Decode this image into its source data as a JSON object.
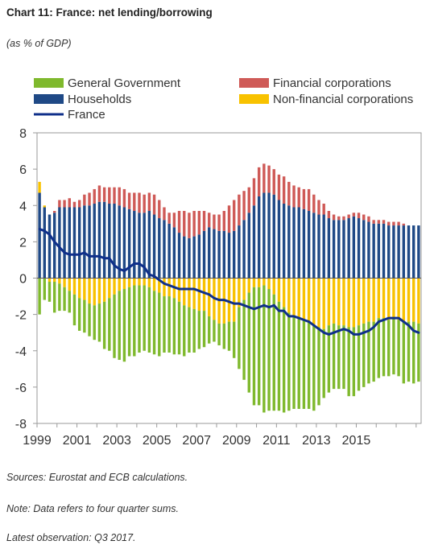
{
  "header": {
    "title": "Chart 11: France: net lending/borrowing",
    "subtitle": "(as % of GDP)"
  },
  "footer": {
    "sources": "Sources: Eurostat and ECB calculations.",
    "note": "Note: Data refers to four quarter sums.",
    "latest": "Latest observation: Q3 2017."
  },
  "colors": {
    "general_government": "#7fb92d",
    "financial_corporations": "#cf5a57",
    "households": "#1f4986",
    "non_financial_corporations": "#f8c200",
    "france": "#0f2f8a"
  },
  "chart_data": {
    "type": "bar",
    "stacked": true,
    "x_start": "1999Q1",
    "x_tick_labels": [
      "1999",
      "2001",
      "2003",
      "2005",
      "2007",
      "2009",
      "2011",
      "2013",
      "2015"
    ],
    "ylim": [
      -8,
      8
    ],
    "yticks": [
      8,
      6,
      4,
      2,
      0,
      -2,
      -4,
      -6,
      -8
    ],
    "grid": false,
    "legend_position": "top",
    "legend": [
      "General Government",
      "Financial corporations",
      "Households",
      "Non-financial corporations",
      "France"
    ],
    "series": [
      {
        "name": "Households",
        "type": "bar",
        "values": [
          4.7,
          3.9,
          3.5,
          3.6,
          3.9,
          3.9,
          3.9,
          3.9,
          3.9,
          4.0,
          4.0,
          4.1,
          4.2,
          4.2,
          4.1,
          4.1,
          4.0,
          3.9,
          3.8,
          3.7,
          3.6,
          3.6,
          3.7,
          3.5,
          3.3,
          3.2,
          3.0,
          2.8,
          2.5,
          2.3,
          2.2,
          2.3,
          2.4,
          2.6,
          2.8,
          2.7,
          2.6,
          2.6,
          2.5,
          2.6,
          2.9,
          3.2,
          3.6,
          4.0,
          4.5,
          4.7,
          4.7,
          4.6,
          4.3,
          4.1,
          4.0,
          3.9,
          3.9,
          3.8,
          3.7,
          3.6,
          3.5,
          3.5,
          3.3,
          3.2,
          3.2,
          3.2,
          3.3,
          3.4,
          3.3,
          3.2,
          3.1,
          3.0,
          3.0,
          3.0,
          2.9,
          2.9,
          2.9,
          2.9,
          2.9,
          2.9,
          2.9
        ]
      },
      {
        "name": "Financial corporations",
        "type": "bar",
        "values": [
          0.0,
          0.0,
          0.0,
          0.1,
          0.4,
          0.4,
          0.5,
          0.3,
          0.4,
          0.6,
          0.7,
          0.8,
          0.9,
          0.8,
          0.9,
          0.9,
          1.0,
          1.0,
          0.9,
          1.0,
          1.1,
          1.0,
          1.0,
          1.1,
          1.0,
          0.7,
          0.6,
          0.8,
          1.2,
          1.4,
          1.4,
          1.4,
          1.3,
          1.1,
          0.8,
          0.8,
          0.9,
          1.1,
          1.5,
          1.7,
          1.7,
          1.6,
          1.4,
          1.5,
          1.6,
          1.6,
          1.5,
          1.4,
          1.4,
          1.5,
          1.3,
          1.2,
          1.1,
          1.1,
          1.2,
          1.0,
          0.8,
          0.6,
          0.4,
          0.3,
          0.2,
          0.2,
          0.2,
          0.2,
          0.3,
          0.3,
          0.3,
          0.2,
          0.2,
          0.2,
          0.2,
          0.2,
          0.2,
          0.1,
          0.0,
          0.0,
          0.0
        ]
      },
      {
        "name": "Non-financial corporations",
        "type": "bar",
        "values": [
          0.6,
          0.1,
          -0.2,
          -0.2,
          -0.3,
          -0.5,
          -0.7,
          -0.9,
          -1.1,
          -1.2,
          -1.4,
          -1.5,
          -1.4,
          -1.3,
          -1.1,
          -0.9,
          -0.7,
          -0.6,
          -0.5,
          -0.4,
          -0.4,
          -0.4,
          -0.5,
          -0.7,
          -0.8,
          -1.0,
          -1.0,
          -1.1,
          -1.3,
          -1.5,
          -1.6,
          -1.7,
          -1.8,
          -1.8,
          -2.1,
          -2.3,
          -2.5,
          -2.5,
          -2.4,
          -2.4,
          -1.6,
          -1.2,
          -0.8,
          -0.5,
          -0.5,
          -0.4,
          -0.6,
          -0.9,
          -1.3,
          -1.6,
          -1.9,
          -2.1,
          -2.2,
          -2.3,
          -2.4,
          -2.6,
          -2.7,
          -2.8,
          -2.6,
          -2.5,
          -2.6,
          -2.6,
          -2.7,
          -2.7,
          -2.6,
          -2.5,
          -2.4,
          -2.4,
          -2.2,
          -2.2,
          -2.3,
          -2.2,
          -2.3,
          -2.4,
          -2.4,
          -2.4,
          -2.5
        ]
      },
      {
        "name": "General Government",
        "type": "bar",
        "values": [
          -2.0,
          -1.2,
          -1.1,
          -1.7,
          -1.5,
          -1.3,
          -1.2,
          -1.7,
          -1.8,
          -1.8,
          -1.8,
          -1.9,
          -2.1,
          -2.6,
          -2.9,
          -3.5,
          -3.8,
          -4.0,
          -3.8,
          -3.9,
          -3.7,
          -3.6,
          -3.6,
          -3.5,
          -3.5,
          -3.1,
          -3.1,
          -3.1,
          -2.9,
          -2.8,
          -2.5,
          -2.4,
          -2.1,
          -2.0,
          -1.5,
          -1.2,
          -1.2,
          -1.4,
          -1.6,
          -2.0,
          -3.4,
          -4.4,
          -5.5,
          -6.5,
          -6.5,
          -7.0,
          -6.7,
          -6.4,
          -6.0,
          -5.8,
          -5.4,
          -5.1,
          -5.0,
          -4.9,
          -4.8,
          -4.7,
          -4.3,
          -3.8,
          -3.7,
          -3.6,
          -3.5,
          -3.5,
          -3.8,
          -3.8,
          -3.6,
          -3.5,
          -3.4,
          -3.3,
          -3.3,
          -3.2,
          -3.1,
          -3.1,
          -3.1,
          -3.4,
          -3.3,
          -3.4,
          -3.2
        ]
      },
      {
        "name": "France",
        "type": "line",
        "values": [
          2.7,
          2.6,
          2.4,
          2.0,
          1.7,
          1.4,
          1.3,
          1.3,
          1.3,
          1.4,
          1.2,
          1.2,
          1.2,
          1.1,
          1.1,
          0.7,
          0.5,
          0.4,
          0.6,
          0.8,
          0.8,
          0.6,
          0.2,
          0.1,
          -0.1,
          -0.3,
          -0.4,
          -0.5,
          -0.6,
          -0.6,
          -0.6,
          -0.6,
          -0.7,
          -0.8,
          -0.9,
          -1.1,
          -1.2,
          -1.2,
          -1.3,
          -1.4,
          -1.4,
          -1.5,
          -1.6,
          -1.7,
          -1.6,
          -1.5,
          -1.6,
          -1.5,
          -1.8,
          -1.8,
          -2.1,
          -2.1,
          -2.2,
          -2.3,
          -2.4,
          -2.6,
          -2.8,
          -3.0,
          -3.1,
          -3.0,
          -2.9,
          -2.8,
          -2.9,
          -3.1,
          -3.1,
          -3.0,
          -2.9,
          -2.7,
          -2.4,
          -2.3,
          -2.2,
          -2.2,
          -2.2,
          -2.4,
          -2.6,
          -2.9,
          -3.0
        ]
      }
    ]
  }
}
